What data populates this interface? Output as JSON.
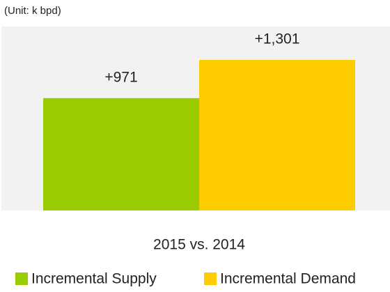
{
  "chart_data": {
    "type": "bar",
    "subtitle": "(Unit: k bpd)",
    "categories": [
      "2015 vs. 2014"
    ],
    "series": [
      {
        "name": "Incremental Supply",
        "color": "#99cc00",
        "values": [
          971
        ],
        "value_labels": [
          "+971"
        ]
      },
      {
        "name": "Incremental Demand",
        "color": "#ffcc00",
        "values": [
          1301
        ],
        "value_labels": [
          "+1,301"
        ]
      }
    ],
    "legend": "bottom"
  }
}
